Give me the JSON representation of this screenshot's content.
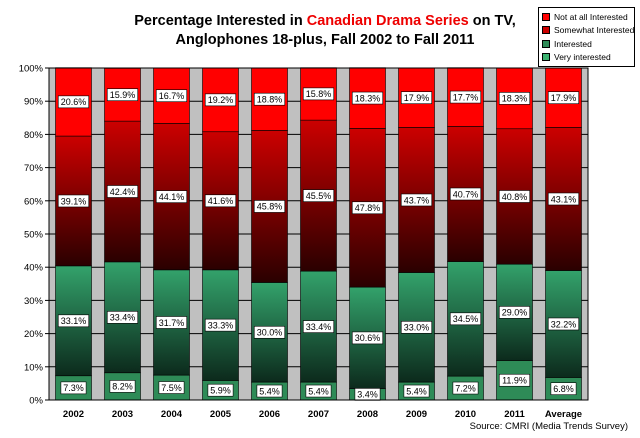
{
  "title": {
    "line1_pre": "Percentage Interested in ",
    "line1_accent": "Canadian Drama Series",
    "line1_post": " on TV,",
    "line2": "Anglophones 18-plus, Fall 2002 to Fall 2011"
  },
  "source": "Source: CMRI (Media Trends Survey)",
  "colors": {
    "not_at_all": "#ff0000",
    "somewhat_top": "#cc0000",
    "somewhat_bottom": "#2a0000",
    "interested_top": "#33a26b",
    "interested_bottom": "#0c2a1c",
    "very": "#2e8b57",
    "plot_bg": "#c0c0c0"
  },
  "chart_data": {
    "type": "bar",
    "stacked": true,
    "categories": [
      "2002",
      "2003",
      "2004",
      "2005",
      "2006",
      "2007",
      "2008",
      "2009",
      "2010",
      "2011",
      "Average"
    ],
    "series": [
      {
        "name": "Very interested",
        "values": [
          7.3,
          8.2,
          7.5,
          5.9,
          5.4,
          5.4,
          3.4,
          5.4,
          7.2,
          11.9,
          6.8
        ]
      },
      {
        "name": "Interested",
        "values": [
          33.1,
          33.4,
          31.7,
          33.3,
          30.0,
          33.4,
          30.6,
          33.0,
          34.5,
          29.0,
          32.2
        ]
      },
      {
        "name": "Somewhat Interested",
        "values": [
          39.1,
          42.4,
          44.1,
          41.6,
          45.8,
          45.5,
          47.8,
          43.7,
          40.7,
          40.8,
          43.1
        ]
      },
      {
        "name": "Not at all Interested",
        "values": [
          20.6,
          15.9,
          16.7,
          19.2,
          18.8,
          15.8,
          18.3,
          17.9,
          17.7,
          18.3,
          17.9
        ]
      }
    ],
    "legend": [
      {
        "name": "Not at all Interested",
        "color": "#ff0000"
      },
      {
        "name": "Somewhat Interested",
        "color": "#cc0000"
      },
      {
        "name": "Interested",
        "color": "#2e8b57"
      },
      {
        "name": "Very interested",
        "color": "#3cb371"
      }
    ],
    "legend_position": "top-right",
    "y_ticks": [
      "0%",
      "10%",
      "20%",
      "30%",
      "40%",
      "50%",
      "60%",
      "70%",
      "80%",
      "90%",
      "100%"
    ],
    "ylim": [
      0,
      100
    ],
    "value_suffix": "%",
    "grid": true
  }
}
